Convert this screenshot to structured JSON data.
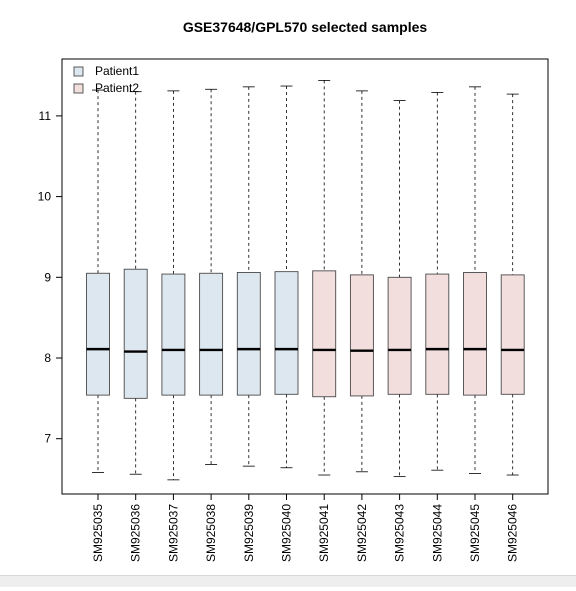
{
  "chart_data": {
    "type": "boxplot",
    "title": "GSE37648/GPL570 selected samples",
    "xlabel": "",
    "ylabel": "",
    "ylim": [
      6.3,
      11.8
    ],
    "yticks": [
      7,
      8,
      9,
      10,
      11
    ],
    "grid": false,
    "legend_position": "top-left",
    "legend": [
      {
        "name": "Patient1",
        "color": "#dde7f0"
      },
      {
        "name": "Patient2",
        "color": "#f3dede"
      }
    ],
    "samples": [
      {
        "label": "SM925035",
        "group": "Patient1",
        "min": 6.58,
        "q1": 7.54,
        "median": 8.11,
        "q3": 9.05,
        "max": 11.32
      },
      {
        "label": "SM925036",
        "group": "Patient1",
        "min": 6.56,
        "q1": 7.5,
        "median": 8.08,
        "q3": 9.1,
        "max": 11.3
      },
      {
        "label": "SM925037",
        "group": "Patient1",
        "min": 6.49,
        "q1": 7.54,
        "median": 8.1,
        "q3": 9.04,
        "max": 11.31
      },
      {
        "label": "SM925038",
        "group": "Patient1",
        "min": 6.68,
        "q1": 7.54,
        "median": 8.1,
        "q3": 9.05,
        "max": 11.33
      },
      {
        "label": "SM925039",
        "group": "Patient1",
        "min": 6.66,
        "q1": 7.54,
        "median": 8.11,
        "q3": 9.06,
        "max": 11.36
      },
      {
        "label": "SM925040",
        "group": "Patient1",
        "min": 6.64,
        "q1": 7.55,
        "median": 8.11,
        "q3": 9.07,
        "max": 11.37
      },
      {
        "label": "SM925041",
        "group": "Patient2",
        "min": 6.55,
        "q1": 7.52,
        "median": 8.1,
        "q3": 9.08,
        "max": 11.44
      },
      {
        "label": "SM925042",
        "group": "Patient2",
        "min": 6.59,
        "q1": 7.53,
        "median": 8.09,
        "q3": 9.03,
        "max": 11.31
      },
      {
        "label": "SM925043",
        "group": "Patient2",
        "min": 6.53,
        "q1": 7.55,
        "median": 8.1,
        "q3": 9.0,
        "max": 11.19
      },
      {
        "label": "SM925044",
        "group": "Patient2",
        "min": 6.61,
        "q1": 7.55,
        "median": 8.11,
        "q3": 9.04,
        "max": 11.29
      },
      {
        "label": "SM925045",
        "group": "Patient2",
        "min": 6.57,
        "q1": 7.54,
        "median": 8.11,
        "q3": 9.06,
        "max": 11.36
      },
      {
        "label": "SM925046",
        "group": "Patient2",
        "min": 6.55,
        "q1": 7.55,
        "median": 8.1,
        "q3": 9.03,
        "max": 11.27
      }
    ]
  }
}
